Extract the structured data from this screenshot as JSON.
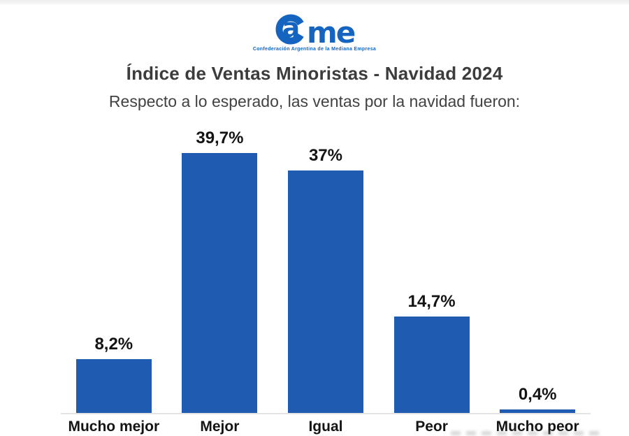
{
  "logo": {
    "name": "CAME",
    "letter_a": "a",
    "letters_me": "me",
    "tagline": "Confederación Argentina de la Mediana Empresa",
    "color": "#1565c0"
  },
  "header": {
    "title": "Índice de Ventas Minoristas - Navidad 2024",
    "subtitle": "Respecto a lo esperado, las ventas por la navidad fueron:"
  },
  "chart_data": {
    "type": "bar",
    "title": "Índice de Ventas Minoristas - Navidad 2024",
    "subtitle": "Respecto a lo esperado, las ventas por la navidad fueron:",
    "categories": [
      "Mucho mejor",
      "Mejor",
      "Igual",
      "Peor",
      "Mucho peor"
    ],
    "values": [
      8.2,
      39.7,
      37,
      14.7,
      0.4
    ],
    "value_labels": [
      "8,2%",
      "39,7%",
      "37%",
      "14,7%",
      "0,4%"
    ],
    "bar_color": "#1f5cb1",
    "xlabel": "",
    "ylabel": "",
    "ylim": [
      0,
      40
    ],
    "grid": false,
    "legend": false,
    "baseline_color": "#e3e3e3"
  }
}
